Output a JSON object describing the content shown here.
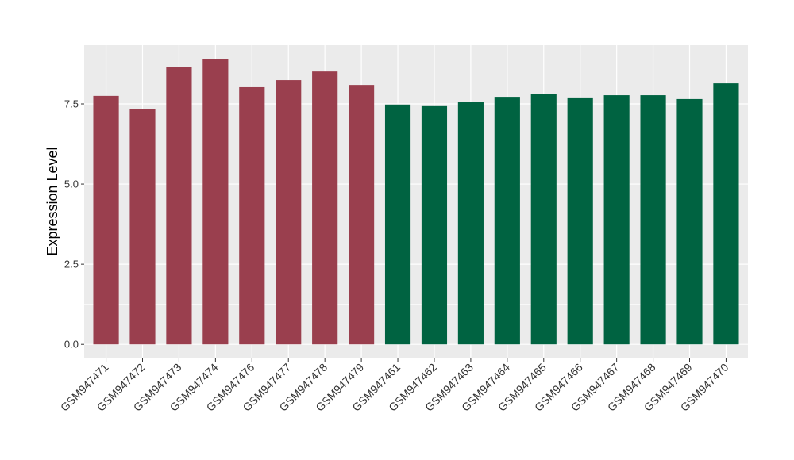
{
  "chart_data": {
    "type": "bar",
    "y_label": "Expression Level",
    "categories": [
      "GSM947471",
      "GSM947472",
      "GSM947473",
      "GSM947474",
      "GSM947476",
      "GSM947477",
      "GSM947478",
      "GSM947479",
      "GSM947461",
      "GSM947462",
      "GSM947463",
      "GSM947464",
      "GSM947465",
      "GSM947466",
      "GSM947467",
      "GSM947468",
      "GSM947469",
      "GSM947470"
    ],
    "values": [
      7.75,
      7.33,
      8.66,
      8.89,
      8.02,
      8.24,
      8.51,
      8.09,
      7.48,
      7.43,
      7.57,
      7.72,
      7.8,
      7.7,
      7.77,
      7.77,
      7.65,
      8.14
    ],
    "colors": [
      "#9a3f4e",
      "#9a3f4e",
      "#9a3f4e",
      "#9a3f4e",
      "#9a3f4e",
      "#9a3f4e",
      "#9a3f4e",
      "#9a3f4e",
      "#006341",
      "#006341",
      "#006341",
      "#006341",
      "#006341",
      "#006341",
      "#006341",
      "#006341",
      "#006341",
      "#006341"
    ],
    "ylim": [
      -0.44,
      9.33
    ],
    "yticks": [
      {
        "value": 0,
        "label": "0.0"
      },
      2.5,
      {
        "value": 5,
        "label": "5.0"
      },
      7.5
    ],
    "grid": true
  }
}
